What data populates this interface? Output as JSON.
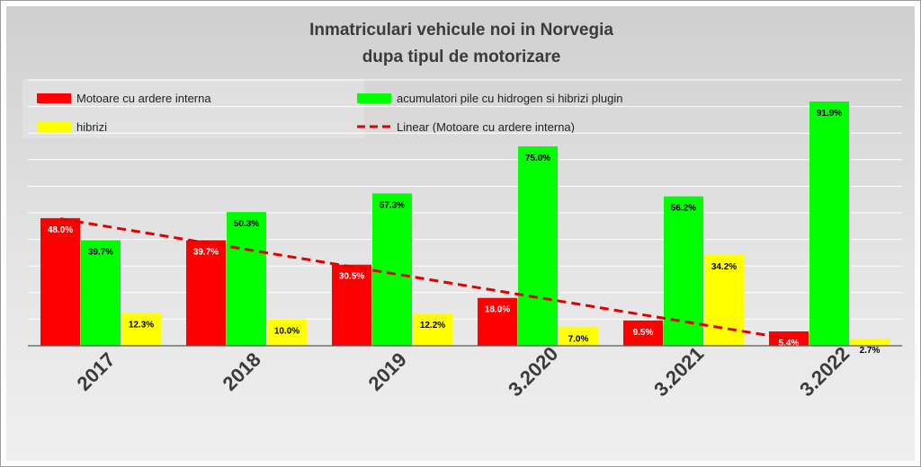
{
  "chart_data": {
    "type": "bar",
    "title": "Inmatriculari vehicule noi in Norvegia",
    "subtitle": "dupa tipul de motorizare",
    "categories": [
      "2017",
      "2018",
      "2019",
      "3.2020",
      "3.2021",
      "3.2022"
    ],
    "series": [
      {
        "name": "Motoare cu ardere interna",
        "color": "#ff0000",
        "values": [
          48.0,
          39.7,
          30.5,
          18.0,
          9.5,
          5.4
        ],
        "labels": [
          "48.0%",
          "39.7%",
          "30.5%",
          "18.0%",
          "9.5%",
          "5.4%"
        ],
        "label_color": "#ffffff"
      },
      {
        "name": "acumulatori  pile cu hidrogen si hibrizi plugin",
        "color": "#00ff00",
        "values": [
          39.7,
          50.3,
          57.3,
          75.0,
          56.2,
          91.9
        ],
        "labels": [
          "39.7%",
          "50.3%",
          "57.3%",
          "75.0%",
          "56.2%",
          "91.9%"
        ],
        "label_color": "#000000"
      },
      {
        "name": "hibrizi",
        "color": "#ffff00",
        "values": [
          12.3,
          10.0,
          12.2,
          7.0,
          34.2,
          2.7
        ],
        "labels": [
          "12.3%",
          "10.0%",
          "12.2%",
          "7.0%",
          "34.2%",
          "2.7%"
        ],
        "label_color": "#000000"
      }
    ],
    "trendline": {
      "name": "Linear (Motoare cu ardere interna)",
      "of_series": 0,
      "color": "#e00000",
      "style": "dashed"
    },
    "ylim": [
      0,
      100
    ],
    "grid": true,
    "legend": "top"
  }
}
